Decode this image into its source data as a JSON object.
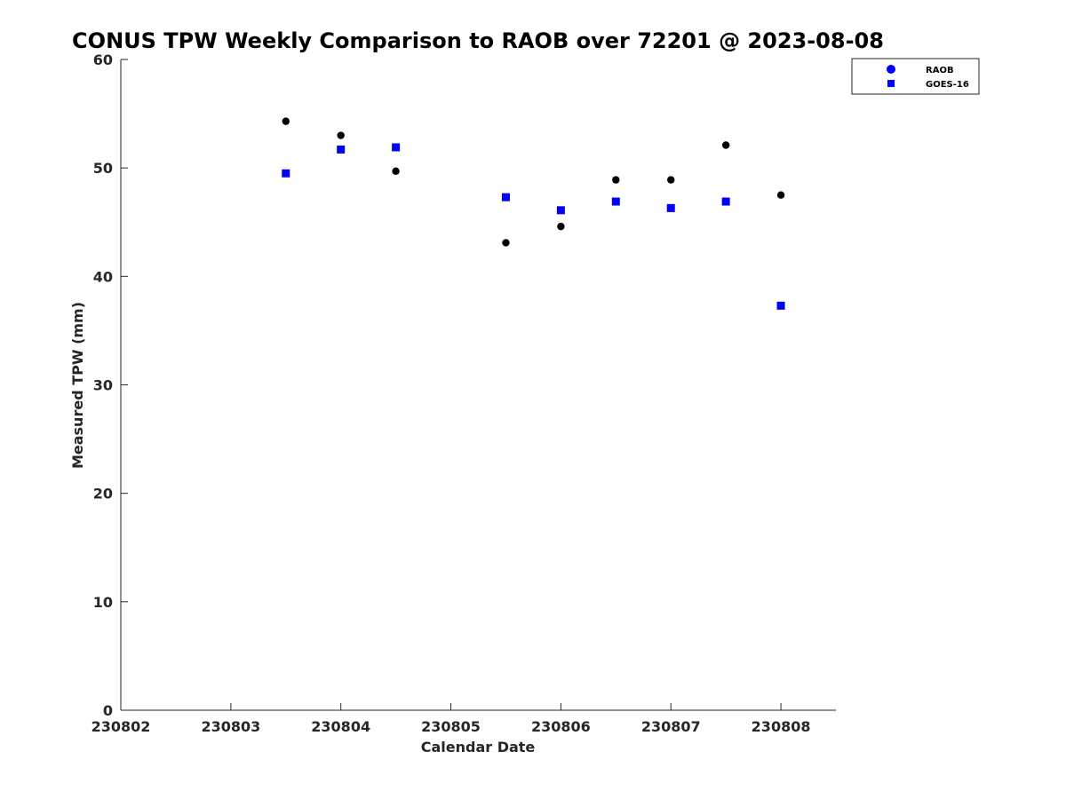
{
  "chart_data": {
    "type": "scatter",
    "title": "CONUS TPW Weekly Comparison to RAOB over 72201 @ 2023-08-08",
    "xlabel": "Calendar Date",
    "ylabel": "Measured TPW (mm)",
    "x_tick_labels": [
      "230802",
      "230803",
      "230804",
      "230805",
      "230806",
      "230807",
      "230808"
    ],
    "y_tick_labels": [
      "0",
      "10",
      "20",
      "30",
      "40",
      "50",
      "60"
    ],
    "xlim": [
      "230802",
      "230808.5"
    ],
    "ylim": [
      0,
      60
    ],
    "grid": false,
    "legend_position": "top-right",
    "series": [
      {
        "name": "RAOB",
        "marker": "circle",
        "legend_color": "#0000ff",
        "point_color": "#000000",
        "x": [
          "230803.5",
          "230804",
          "230804.5",
          "230805.5",
          "230806",
          "230806.5",
          "230807",
          "230807.5",
          "230808"
        ],
        "y": [
          54.3,
          53.0,
          49.7,
          43.1,
          44.6,
          48.9,
          48.9,
          52.1,
          47.5
        ]
      },
      {
        "name": "GOES-16",
        "marker": "square",
        "legend_color": "#0000ff",
        "point_color": "#0000ff",
        "x": [
          "230803.5",
          "230804",
          "230804.5",
          "230805.5",
          "230806",
          "230806.5",
          "230807",
          "230807.5",
          "230808"
        ],
        "y": [
          49.5,
          51.7,
          51.9,
          47.3,
          46.1,
          46.9,
          46.3,
          46.9,
          37.3
        ]
      }
    ]
  }
}
